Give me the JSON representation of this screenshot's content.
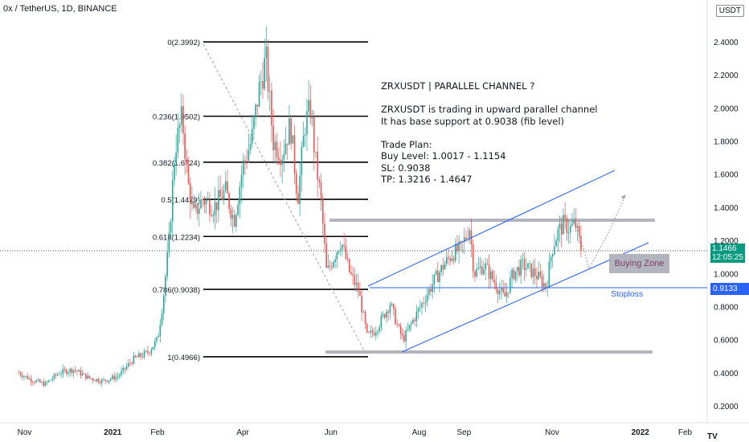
{
  "header": {
    "symbol_line": "0x / TetherUS, 1D, BINANCE",
    "currency_badge": "USDT"
  },
  "note": {
    "lines": [
      "ZRXUSDT | PARALLEL CHANNEL ?",
      "",
      "ZRXUSDT is trading in upward parallel channel",
      "It has base support at 0.9038 (fib level)",
      "",
      "Trade Plan:",
      "Buy Level: 1.0017 - 1.1154",
      "SL: 0.9038",
      "TP: 1.3216 - 1.4647"
    ]
  },
  "zone_label": "Buying Zone",
  "stoploss_label": "Stoploss",
  "last_price": {
    "price": "1.1466",
    "countdown": "12:05:25"
  },
  "stop_price_tag": "0.9133",
  "fib_levels": [
    {
      "label": "0(2.3992)",
      "value": 2.3992
    },
    {
      "label": "0.236(1.9502)",
      "value": 1.9502
    },
    {
      "label": "0.382(1.6724)",
      "value": 1.6724
    },
    {
      "label": "0.5(1.4479)",
      "value": 1.4479
    },
    {
      "label": "0.618(1.2234)",
      "value": 1.2234
    },
    {
      "label": "0.786(0.9038)",
      "value": 0.9038
    },
    {
      "label": "1(0.4966)",
      "value": 0.4966
    }
  ],
  "chart_data": {
    "type": "candlestick",
    "title": "0x / TetherUS, 1D, BINANCE",
    "y_axis": {
      "ticks": [
        "2.4000",
        "2.2000",
        "2.0000",
        "1.8000",
        "1.6000",
        "1.4000",
        "1.2000",
        "1.0000",
        "0.8000",
        "0.6000",
        "0.4000",
        "0.2000"
      ],
      "range": [
        0.08,
        2.55
      ],
      "position": "right"
    },
    "x_axis": {
      "ticks": [
        "Nov",
        "2021",
        "Feb",
        "Apr",
        "Jun",
        "Aug",
        "Sep",
        "Nov",
        "2022",
        "Feb"
      ]
    },
    "price_path": [
      [
        "2020-10-28",
        0.4
      ],
      [
        "2020-11-05",
        0.36
      ],
      [
        "2020-11-15",
        0.33
      ],
      [
        "2020-11-25",
        0.4
      ],
      [
        "2020-12-05",
        0.42
      ],
      [
        "2020-12-15",
        0.37
      ],
      [
        "2020-12-25",
        0.35
      ],
      [
        "2021-01-05",
        0.38
      ],
      [
        "2021-01-15",
        0.48
      ],
      [
        "2021-01-25",
        0.52
      ],
      [
        "2021-02-01",
        0.6
      ],
      [
        "2021-02-05",
        0.85
      ],
      [
        "2021-02-09",
        1.2
      ],
      [
        "2021-02-13",
        1.75
      ],
      [
        "2021-02-18",
        1.95
      ],
      [
        "2021-02-22",
        1.55
      ],
      [
        "2021-02-26",
        1.35
      ],
      [
        "2021-03-04",
        1.45
      ],
      [
        "2021-03-12",
        1.4
      ],
      [
        "2021-03-20",
        1.5
      ],
      [
        "2021-03-26",
        1.32
      ],
      [
        "2021-04-01",
        1.65
      ],
      [
        "2021-04-07",
        1.8
      ],
      [
        "2021-04-12",
        2.1
      ],
      [
        "2021-04-17",
        2.3
      ],
      [
        "2021-04-22",
        1.8
      ],
      [
        "2021-04-28",
        1.72
      ],
      [
        "2021-05-04",
        1.9
      ],
      [
        "2021-05-09",
        1.45
      ],
      [
        "2021-05-14",
        1.9
      ],
      [
        "2021-05-18",
        2.0
      ],
      [
        "2021-05-21",
        1.7
      ],
      [
        "2021-05-25",
        1.45
      ],
      [
        "2021-05-29",
        1.0
      ],
      [
        "2021-06-03",
        1.1
      ],
      [
        "2021-06-08",
        1.2
      ],
      [
        "2021-06-14",
        1.0
      ],
      [
        "2021-06-20",
        0.9
      ],
      [
        "2021-06-26",
        0.62
      ],
      [
        "2021-07-01",
        0.65
      ],
      [
        "2021-07-06",
        0.72
      ],
      [
        "2021-07-12",
        0.82
      ],
      [
        "2021-07-17",
        0.68
      ],
      [
        "2021-07-21",
        0.6
      ],
      [
        "2021-07-28",
        0.72
      ],
      [
        "2021-08-05",
        0.85
      ],
      [
        "2021-08-11",
        0.95
      ],
      [
        "2021-08-18",
        1.05
      ],
      [
        "2021-08-24",
        1.12
      ],
      [
        "2021-08-30",
        1.15
      ],
      [
        "2021-09-05",
        1.28
      ],
      [
        "2021-09-08",
        1.0
      ],
      [
        "2021-09-15",
        1.05
      ],
      [
        "2021-09-22",
        0.95
      ],
      [
        "2021-09-29",
        0.85
      ],
      [
        "2021-10-05",
        1.0
      ],
      [
        "2021-10-12",
        1.05
      ],
      [
        "2021-10-20",
        1.0
      ],
      [
        "2021-10-28",
        0.92
      ],
      [
        "2021-11-01",
        1.15
      ],
      [
        "2021-11-05",
        1.25
      ],
      [
        "2021-11-09",
        1.3
      ],
      [
        "2021-11-13",
        1.27
      ],
      [
        "2021-11-17",
        1.3
      ],
      [
        "2021-11-21",
        1.15
      ]
    ],
    "annotations": [
      "parallel channel upper line",
      "parallel channel lower line",
      "resistance band 1.32",
      "support band 0.51",
      "projected dotted path"
    ]
  }
}
